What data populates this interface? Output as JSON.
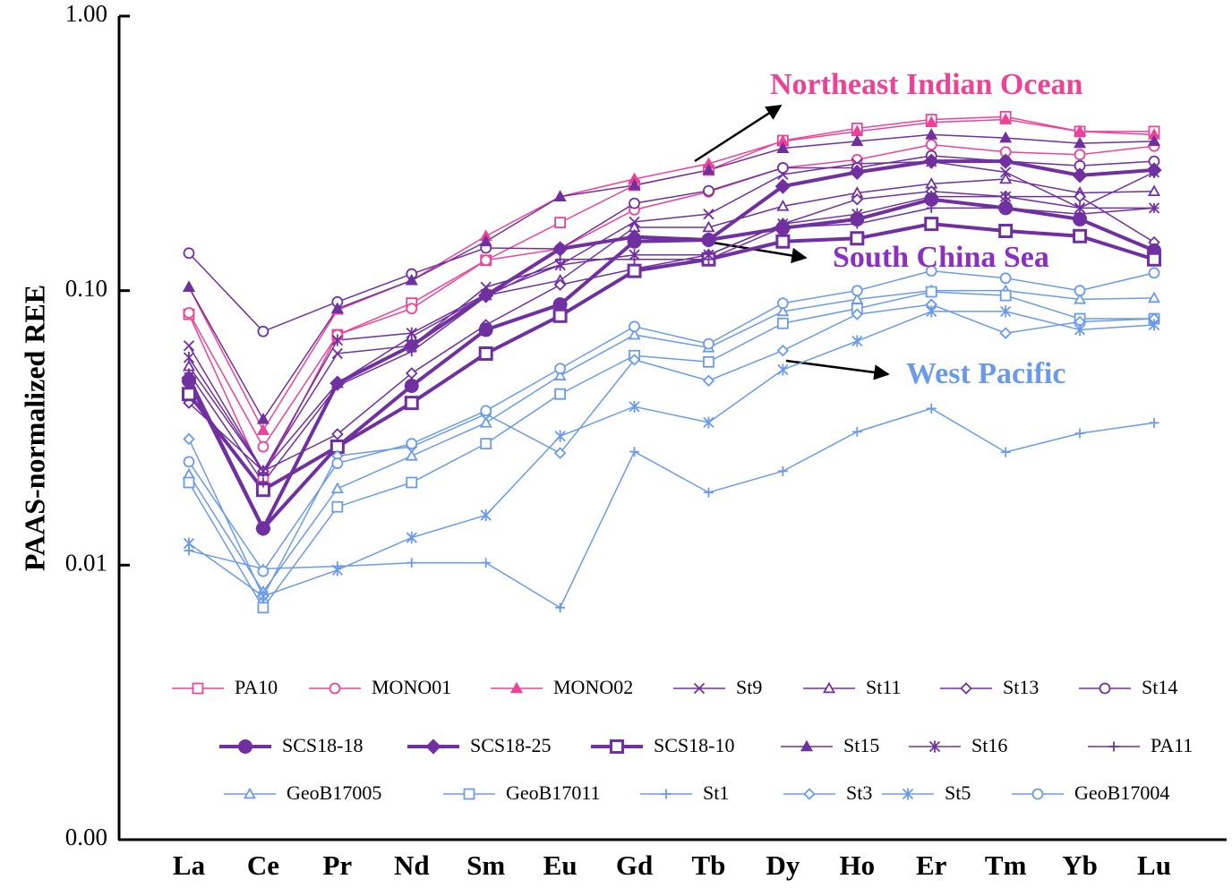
{
  "chart_data": {
    "type": "line",
    "ylabel": "PAAS-normalized REE",
    "yscale": "log",
    "ylim": [
      0.001,
      1
    ],
    "yticks": [
      {
        "value": 0.001,
        "label": "0.00"
      },
      0.01,
      {
        "value": 0.1,
        "label": "0.10"
      },
      {
        "value": 1,
        "label": "1.00"
      }
    ],
    "legend": "lower center",
    "categories": [
      "La",
      "Ce",
      "Pr",
      "Nd",
      "Sm",
      "Eu",
      "Gd",
      "Tb",
      "Dy",
      "Ho",
      "Er",
      "Tm",
      "Yb",
      "Lu"
    ],
    "annotations": [
      {
        "text": "Northeast Indian Ocean",
        "color": "#ec4399"
      },
      {
        "text": "South China Sea",
        "color": "#8a2fc0"
      },
      {
        "text": "West Pacific",
        "color": "#6b9be8"
      }
    ],
    "series": [
      {
        "name": "PA10",
        "color": "#ec4399",
        "marker": "square-open",
        "line_width": 1.5,
        "values": [
          0.082,
          0.021,
          0.069,
          0.09,
          0.129,
          0.177,
          0.242,
          0.275,
          0.352,
          0.39,
          0.42,
          0.43,
          0.38,
          0.38
        ]
      },
      {
        "name": "MONO01",
        "color": "#ec4399",
        "marker": "circle-open",
        "line_width": 1.5,
        "values": [
          0.083,
          0.027,
          0.069,
          0.086,
          0.129,
          0.142,
          0.197,
          0.229,
          0.28,
          0.3,
          0.34,
          0.32,
          0.313,
          0.336
        ]
      },
      {
        "name": "MONO02",
        "color": "#ec4399",
        "marker": "triangle-filled",
        "line_width": 1.5,
        "values": [
          0.103,
          0.031,
          0.085,
          0.109,
          0.158,
          0.22,
          0.255,
          0.29,
          0.35,
          0.38,
          0.41,
          0.42,
          0.38,
          0.37
        ]
      },
      {
        "name": "St9",
        "color": "#7030a0",
        "marker": "x-open",
        "line_width": 1.5,
        "values": [
          0.063,
          0.022,
          0.059,
          0.063,
          0.103,
          0.124,
          0.178,
          0.19,
          0.265,
          0.29,
          0.295,
          0.27,
          0.2,
          0.2
        ]
      },
      {
        "name": "St11",
        "color": "#7030a0",
        "marker": "triangle-open",
        "line_width": 1.5,
        "values": [
          0.053,
          0.022,
          0.046,
          0.068,
          0.096,
          0.109,
          0.17,
          0.17,
          0.203,
          0.227,
          0.245,
          0.255,
          0.227,
          0.23
        ]
      },
      {
        "name": "St13",
        "color": "#7030a0",
        "marker": "diamond-open",
        "line_width": 1.5,
        "values": [
          0.039,
          0.022,
          0.03,
          0.05,
          0.075,
          0.105,
          0.12,
          0.135,
          0.175,
          0.215,
          0.23,
          0.22,
          0.22,
          0.15
        ]
      },
      {
        "name": "St14",
        "color": "#7030a0",
        "marker": "circle-open",
        "line_width": 1.5,
        "values": [
          0.137,
          0.071,
          0.091,
          0.115,
          0.143,
          0.142,
          0.208,
          0.231,
          0.28,
          0.28,
          0.31,
          0.296,
          0.285,
          0.296
        ]
      },
      {
        "name": "SCS18-18",
        "color": "#7030a0",
        "marker": "circle-filled",
        "line_width": 4,
        "values": [
          0.047,
          0.0136,
          0.027,
          0.045,
          0.072,
          0.089,
          0.151,
          0.153,
          0.169,
          0.182,
          0.215,
          0.2,
          0.182,
          0.14
        ]
      },
      {
        "name": "SCS18-25",
        "color": "#7030a0",
        "marker": "diamond-filled",
        "line_width": 4,
        "values": [
          0.048,
          0.0136,
          0.046,
          0.063,
          0.096,
          0.142,
          0.157,
          0.153,
          0.24,
          0.27,
          0.296,
          0.296,
          0.263,
          0.275
        ]
      },
      {
        "name": "SCS18-10",
        "color": "#7030a0",
        "marker": "square-open",
        "line_width": 4,
        "values": [
          0.042,
          0.0188,
          0.027,
          0.039,
          0.059,
          0.081,
          0.118,
          0.13,
          0.151,
          0.155,
          0.175,
          0.165,
          0.158,
          0.13
        ]
      },
      {
        "name": "St15",
        "color": "#7030a0",
        "marker": "triangle-filled",
        "line_width": 1.5,
        "values": [
          0.103,
          0.034,
          0.086,
          0.109,
          0.151,
          0.22,
          0.242,
          0.275,
          0.33,
          0.35,
          0.37,
          0.36,
          0.344,
          0.35
        ]
      },
      {
        "name": "St16",
        "color": "#7030a0",
        "marker": "asterisk-open",
        "line_width": 1.5,
        "values": [
          0.057,
          0.022,
          0.066,
          0.07,
          0.097,
          0.124,
          0.135,
          0.135,
          0.175,
          0.19,
          0.22,
          0.22,
          0.2,
          0.27
        ]
      },
      {
        "name": "PA11",
        "color": "#7030a0",
        "marker": "plus-open",
        "line_width": 1.5,
        "values": [
          0.05,
          0.02,
          0.045,
          0.06,
          0.095,
          0.13,
          0.13,
          0.13,
          0.17,
          0.175,
          0.2,
          0.2,
          0.19,
          0.2
        ]
      },
      {
        "name": "GeoB17005",
        "color": "#6b9be8",
        "marker": "triangle-open",
        "line_width": 1.5,
        "values": [
          0.0214,
          0.008,
          0.019,
          0.025,
          0.033,
          0.049,
          0.069,
          0.062,
          0.084,
          0.093,
          0.1,
          0.1,
          0.093,
          0.094
        ]
      },
      {
        "name": "GeoB17011",
        "color": "#6b9be8",
        "marker": "square-open",
        "line_width": 1.5,
        "values": [
          0.02,
          0.007,
          0.0163,
          0.02,
          0.0277,
          0.042,
          0.058,
          0.055,
          0.076,
          0.086,
          0.099,
          0.096,
          0.079,
          0.079
        ]
      },
      {
        "name": "St1",
        "color": "#6b9be8",
        "marker": "plus-open",
        "line_width": 1.5,
        "values": [
          0.0113,
          0.0097,
          0.0099,
          0.0102,
          0.0102,
          0.007,
          0.0259,
          0.0184,
          0.022,
          0.0306,
          0.0372,
          0.0258,
          0.0302,
          0.033
        ]
      },
      {
        "name": "St3",
        "color": "#6b9be8",
        "marker": "diamond-open",
        "line_width": 1.5,
        "values": [
          0.0288,
          0.0077,
          0.025,
          0.027,
          0.0355,
          0.0256,
          0.056,
          0.047,
          0.0605,
          0.082,
          0.089,
          0.07,
          0.077,
          0.079
        ]
      },
      {
        "name": "St5",
        "color": "#6b9be8",
        "marker": "asterisk-open",
        "line_width": 1.5,
        "values": [
          0.012,
          0.0077,
          0.0096,
          0.0126,
          0.0152,
          0.0295,
          0.0378,
          0.0331,
          0.0515,
          0.0655,
          0.084,
          0.084,
          0.072,
          0.075
        ]
      },
      {
        "name": "GeoB17004",
        "color": "#6b9be8",
        "marker": "circle-open",
        "line_width": 1.5,
        "values": [
          0.0238,
          0.0095,
          0.0235,
          0.0277,
          0.0365,
          0.052,
          0.074,
          0.064,
          0.09,
          0.1,
          0.118,
          0.111,
          0.1,
          0.116
        ]
      }
    ]
  }
}
